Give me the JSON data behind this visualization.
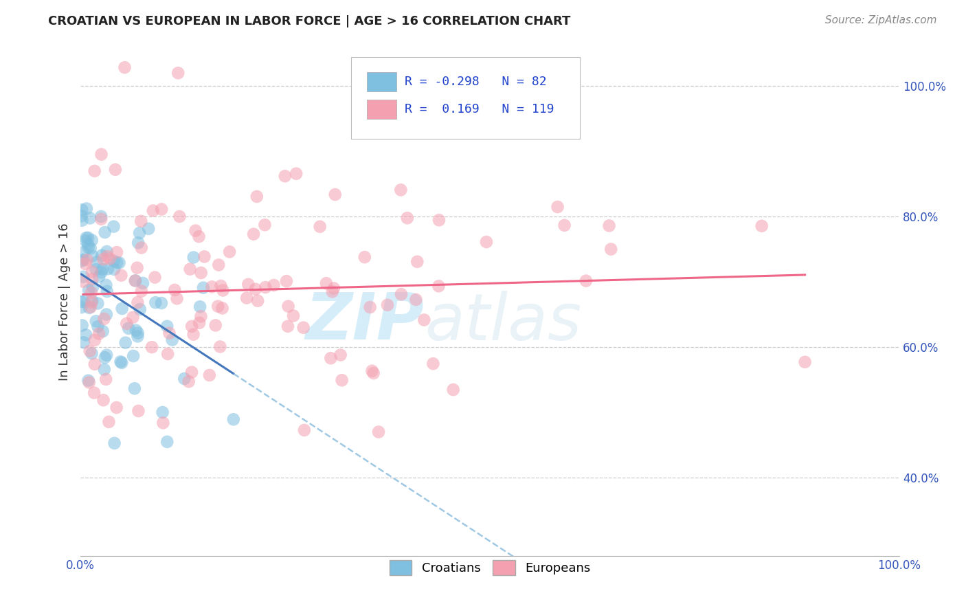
{
  "title": "CROATIAN VS EUROPEAN IN LABOR FORCE | AGE > 16 CORRELATION CHART",
  "source": "Source: ZipAtlas.com",
  "ylabel": "In Labor Force | Age > 16",
  "xlim": [
    0.0,
    1.0
  ],
  "ylim": [
    0.28,
    1.06
  ],
  "xticks": [
    0.0,
    1.0
  ],
  "xticklabels": [
    "0.0%",
    "100.0%"
  ],
  "yticks": [
    0.4,
    0.6,
    0.8,
    1.0
  ],
  "yticklabels": [
    "40.0%",
    "60.0%",
    "80.0%",
    "100.0%"
  ],
  "blue_R": -0.298,
  "blue_N": 82,
  "pink_R": 0.169,
  "pink_N": 119,
  "blue_color": "#7fbfdf",
  "pink_color": "#f4a0b0",
  "blue_line_color": "#4477bb",
  "pink_line_color": "#ee6688",
  "dashed_color": "#88bbdd",
  "grid_color": "#cccccc",
  "background_color": "#ffffff",
  "legend_label_blue": "Croatians",
  "legend_label_pink": "Europeans",
  "watermark_zip": "ZIP",
  "watermark_atlas": "atlas",
  "blue_seed": 99,
  "pink_seed": 17,
  "title_fontsize": 13,
  "source_fontsize": 11,
  "tick_fontsize": 12,
  "ylabel_fontsize": 13
}
